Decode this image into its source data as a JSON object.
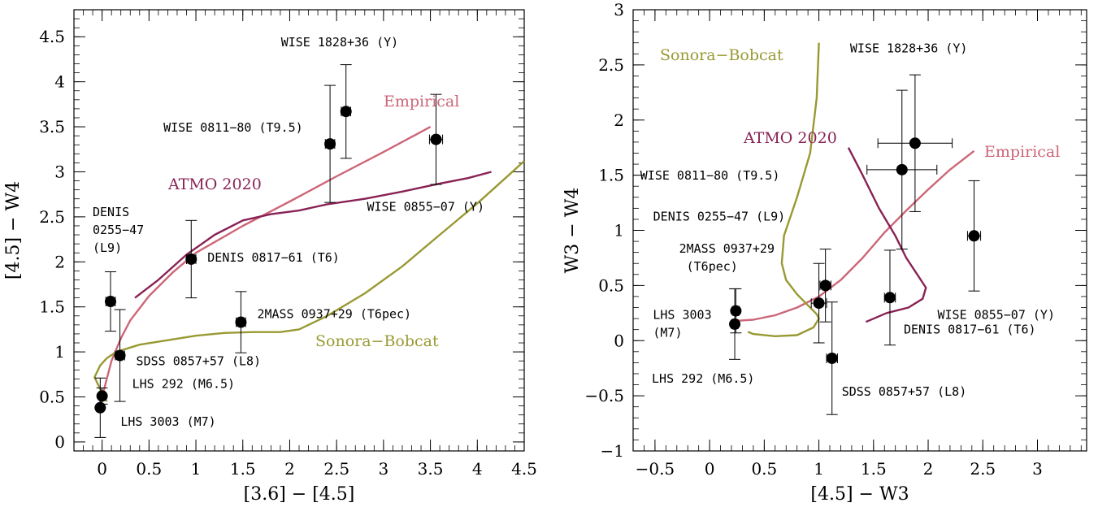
{
  "chart_data": [
    {
      "type": "scatter",
      "xlabel": "[3.6] − [4.5]",
      "ylabel": "[4.5] − W4",
      "xlim": [
        -0.3,
        4.5
      ],
      "ylim": [
        -0.1,
        4.8
      ],
      "xticks": [
        "0",
        "0.5",
        "1",
        "1.5",
        "2",
        "2.5",
        "3",
        "3.5",
        "4",
        "4.5"
      ],
      "yticks": [
        "0",
        "0.5",
        "1",
        "1.5",
        "2",
        "2.5",
        "3",
        "3.5",
        "4",
        "4.5"
      ],
      "points": [
        {
          "label": "LHS 3003 (M7)",
          "x": -0.02,
          "y": 0.38,
          "yerr": 0.33,
          "xerr": 0.03
        },
        {
          "label": "LHS 292 (M6.5)",
          "x": 0.0,
          "y": 0.51,
          "yerr": 0.09,
          "xerr": 0.03
        },
        {
          "label": "DENIS 0255−47 (L9)",
          "x": 0.09,
          "y": 1.56,
          "yerr": 0.33,
          "xerr": 0.05
        },
        {
          "label": "SDSS 0857+57 (L8)",
          "x": 0.19,
          "y": 0.96,
          "yerr": 0.51,
          "xerr": 0.05
        },
        {
          "label": "DENIS 0817−61 (T6)",
          "x": 0.95,
          "y": 2.03,
          "yerr": 0.43,
          "xerr": 0.05
        },
        {
          "label": "2MASS 0937+29 (T6pec)",
          "x": 1.48,
          "y": 1.33,
          "yerr": 0.34,
          "xerr": 0.05
        },
        {
          "label": "WISE 0811−80 (T9.5)",
          "x": 2.43,
          "y": 3.31,
          "yerr": 0.65,
          "xerr": 0.05
        },
        {
          "label": "WISE 1828+36 (Y)",
          "x": 2.6,
          "y": 3.67,
          "yerr": 0.52,
          "xerr": 0.05
        },
        {
          "label": "WISE 0855−07 (Y)",
          "x": 3.56,
          "y": 3.36,
          "yerr": 0.5,
          "xerr": 0.07
        }
      ],
      "series": [
        {
          "name": "Empirical",
          "color": "#cc6677",
          "x": [
            -0.05,
            0.0,
            0.05,
            0.1,
            0.2,
            0.3,
            0.5,
            0.75,
            1.0,
            1.5,
            2.0,
            2.5,
            3.0,
            3.5
          ],
          "y": [
            0.35,
            0.5,
            0.7,
            0.9,
            1.15,
            1.35,
            1.62,
            1.88,
            2.1,
            2.4,
            2.67,
            2.95,
            3.22,
            3.5
          ]
        },
        {
          "name": "ATMO 2020",
          "color": "#882255",
          "x": [
            0.35,
            0.6,
            0.9,
            1.2,
            1.5,
            1.8,
            2.1,
            2.4,
            2.8,
            3.2,
            3.6,
            3.9,
            4.15
          ],
          "y": [
            1.6,
            1.8,
            2.08,
            2.3,
            2.46,
            2.53,
            2.57,
            2.64,
            2.7,
            2.78,
            2.87,
            2.93,
            3.0
          ]
        },
        {
          "name": "Sonora−Bobcat",
          "color": "#999933",
          "x": [
            0.05,
            0.0,
            -0.05,
            -0.08,
            -0.02,
            0.05,
            0.15,
            0.4,
            0.7,
            1.0,
            1.3,
            1.6,
            1.9,
            2.1,
            2.4,
            2.8,
            3.2,
            3.6,
            4.0,
            4.3,
            4.5
          ],
          "y": [
            0.45,
            0.55,
            0.65,
            0.72,
            0.85,
            0.93,
            1.0,
            1.08,
            1.13,
            1.18,
            1.21,
            1.22,
            1.22,
            1.25,
            1.4,
            1.65,
            1.95,
            2.3,
            2.65,
            2.93,
            3.12
          ]
        }
      ],
      "annotations": [
        "Empirical",
        "ATMO 2020",
        "Sonora−Bobcat"
      ]
    },
    {
      "type": "scatter",
      "xlabel": "[4.5] − W3",
      "ylabel": "W3 − W4",
      "xlim": [
        -0.7,
        3.45
      ],
      "ylim": [
        -1.0,
        3.0
      ],
      "xticks": [
        "−0.5",
        "0",
        "0.5",
        "1",
        "1.5",
        "2",
        "2.5",
        "3"
      ],
      "yticks": [
        "−1",
        "−0.5",
        "0",
        "0.5",
        "1",
        "1.5",
        "2",
        "2.5",
        "3"
      ],
      "points": [
        {
          "label": "LHS 3003 (M7)",
          "x": 0.24,
          "y": 0.27,
          "yerr": 0.2,
          "xerr": 0.03
        },
        {
          "label": "LHS 292 (M6.5)",
          "x": 0.23,
          "y": 0.15,
          "yerr": 0.32,
          "xerr": 0.03
        },
        {
          "label": "DENIS 0255−47 (L9)",
          "x": 1.06,
          "y": 0.5,
          "yerr": 0.33,
          "xerr": 0.05
        },
        {
          "label": "2MASS 0937+29 (T6pec)",
          "x": 1.0,
          "y": 0.34,
          "yerr": 0.36,
          "xerr": 0.07
        },
        {
          "label": "SDSS 0857+57 (L8)",
          "x": 1.12,
          "y": -0.16,
          "yerr": 0.51,
          "xerr": 0.05
        },
        {
          "label": "DENIS 0817−61 (T6)",
          "x": 1.65,
          "y": 0.39,
          "yerr": 0.43,
          "xerr": 0.05
        },
        {
          "label": "WISE 0811−80 (T9.5)",
          "x": 1.76,
          "y": 1.55,
          "yerr": 0.72,
          "xerr": 0.32
        },
        {
          "label": "WISE 1828+36 (Y)",
          "x": 1.88,
          "y": 1.79,
          "yerr": 0.62,
          "xerr": 0.34
        },
        {
          "label": "WISE 0855−07 (Y)",
          "x": 2.42,
          "y": 0.95,
          "yerr": 0.5,
          "xerr": 0.06
        }
      ],
      "series": [
        {
          "name": "Empirical",
          "color": "#cc6677",
          "x": [
            0.25,
            0.4,
            0.6,
            0.8,
            1.0,
            1.2,
            1.4,
            1.6,
            1.8,
            2.0,
            2.2,
            2.42
          ],
          "y": [
            0.18,
            0.19,
            0.23,
            0.3,
            0.4,
            0.55,
            0.75,
            0.98,
            1.18,
            1.37,
            1.55,
            1.72
          ]
        },
        {
          "name": "ATMO 2020",
          "color": "#882255",
          "x": [
            1.27,
            1.4,
            1.55,
            1.7,
            1.8,
            1.9,
            1.98,
            1.95,
            1.82,
            1.62,
            1.43
          ],
          "y": [
            1.75,
            1.5,
            1.2,
            0.95,
            0.75,
            0.6,
            0.48,
            0.38,
            0.3,
            0.25,
            0.17
          ]
        },
        {
          "name": "Sonora−Bobcat",
          "color": "#999933",
          "x": [
            1.0,
            0.98,
            0.92,
            0.8,
            0.68,
            0.66,
            0.7,
            0.8,
            0.9,
            0.98,
            1.0,
            0.95,
            0.8,
            0.6,
            0.4,
            0.35
          ],
          "y": [
            2.7,
            2.2,
            1.7,
            1.3,
            0.95,
            0.7,
            0.55,
            0.42,
            0.32,
            0.24,
            0.2,
            0.12,
            0.05,
            0.04,
            0.06,
            0.08
          ]
        }
      ],
      "annotations": [
        "Sonora−Bobcat",
        "ATMO 2020",
        "Empirical"
      ]
    }
  ]
}
